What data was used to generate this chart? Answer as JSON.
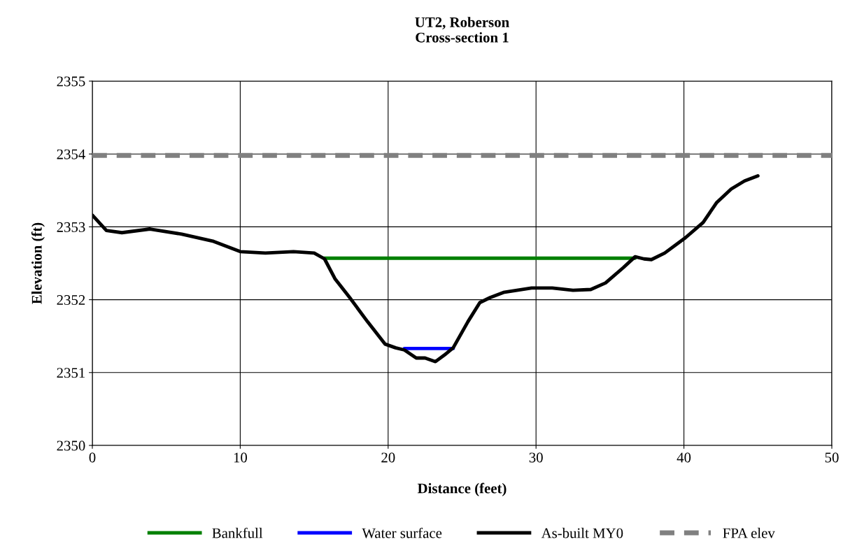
{
  "chart_data": {
    "type": "line",
    "title": "UT2, Roberson\nCross-section 1",
    "xlabel": "Distance (feet)",
    "ylabel": "Elevation (ft)",
    "xlim": [
      0,
      50
    ],
    "ylim": [
      2350,
      2355
    ],
    "xticks": [
      0,
      10,
      20,
      30,
      40,
      50
    ],
    "yticks": [
      2350,
      2351,
      2352,
      2353,
      2354,
      2355
    ],
    "grid": true,
    "legend": "bottom",
    "marker": "none",
    "series": [
      {
        "name": "Bankfull",
        "color": "#008000",
        "x": [
          15.65,
          36.7
        ],
        "values": [
          2352.57,
          2352.57
        ]
      },
      {
        "name": "Water surface",
        "color": "#0000ff",
        "x": [
          21.1,
          24.4
        ],
        "values": [
          2351.33,
          2351.33
        ]
      },
      {
        "name": "As-built MY0",
        "color": "#000000",
        "x": [
          0,
          0.95,
          2.0,
          3.9,
          6.05,
          8.2,
          10,
          11.7,
          13.6,
          15.0,
          15.7,
          16.4,
          17.4,
          18.6,
          19.8,
          20.5,
          21.1,
          21.9,
          22.5,
          23.2,
          23.8,
          24.4,
          25.4,
          26.2,
          26.9,
          27.8,
          29.7,
          31.1,
          32.5,
          33.7,
          34.7,
          35.9,
          36.7,
          37.3,
          37.8,
          38.7,
          40.1,
          41.3,
          42.2,
          43.2,
          44.1,
          45.0
        ],
        "values": [
          2353.16,
          2352.95,
          2352.92,
          2352.97,
          2352.9,
          2352.8,
          2352.66,
          2352.64,
          2352.66,
          2352.64,
          2352.56,
          2352.29,
          2352.03,
          2351.7,
          2351.39,
          2351.34,
          2351.31,
          2351.2,
          2351.2,
          2351.15,
          2351.24,
          2351.34,
          2351.7,
          2351.96,
          2352.03,
          2352.1,
          2352.16,
          2352.16,
          2352.13,
          2352.14,
          2352.23,
          2352.44,
          2352.59,
          2352.56,
          2352.55,
          2352.64,
          2352.85,
          2353.06,
          2353.33,
          2353.52,
          2353.63,
          2353.7
        ]
      },
      {
        "name": "FPA elev",
        "color": "#808080",
        "line_style": "dashed",
        "x": [
          0,
          50
        ],
        "values": [
          2353.98,
          2353.98
        ]
      }
    ]
  }
}
